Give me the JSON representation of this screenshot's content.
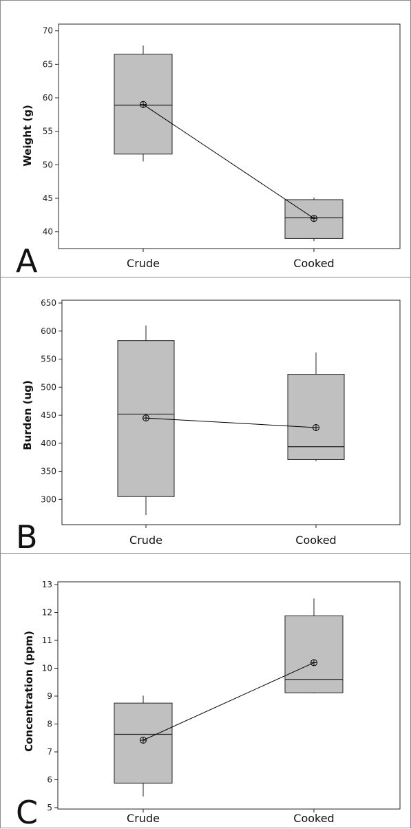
{
  "colors": {
    "box_fill": "#c0c0c0",
    "box_stroke": "#222222",
    "frame": "#222222",
    "line": "#000000"
  },
  "chart_data": [
    {
      "type": "box",
      "panel_label": "A",
      "ylabel": "Weight (g)",
      "categories": [
        "Crude",
        "Cooked"
      ],
      "ylim": [
        37.5,
        71
      ],
      "yticks": [
        40,
        45,
        50,
        55,
        60,
        65,
        70
      ],
      "boxes": [
        {
          "category": "Crude",
          "min": 50.5,
          "q1": 51.6,
          "median": 58.9,
          "q3": 66.5,
          "max": 67.8,
          "mean": 59.0
        },
        {
          "category": "Cooked",
          "min": 38.6,
          "q1": 39.0,
          "median": 42.1,
          "q3": 44.8,
          "max": 45.1,
          "mean": 42.0
        }
      ],
      "grid": false,
      "mean_connect_line": true
    },
    {
      "type": "box",
      "panel_label": "B",
      "ylabel": "Burden (ug)",
      "categories": [
        "Crude",
        "Cooked"
      ],
      "ylim": [
        255,
        655
      ],
      "yticks": [
        300,
        350,
        400,
        450,
        500,
        550,
        600,
        650
      ],
      "boxes": [
        {
          "category": "Crude",
          "min": 272,
          "q1": 305,
          "median": 452,
          "q3": 583,
          "max": 610,
          "mean": 445
        },
        {
          "category": "Cooked",
          "min": 368,
          "q1": 371,
          "median": 394,
          "q3": 523,
          "max": 562,
          "mean": 428
        }
      ],
      "grid": false,
      "mean_connect_line": true
    },
    {
      "type": "box",
      "panel_label": "C",
      "ylabel": "Concentration (ppm)",
      "categories": [
        "Crude",
        "Cooked"
      ],
      "ylim": [
        4.95,
        13.1
      ],
      "yticks": [
        5,
        6,
        7,
        8,
        9,
        10,
        11,
        12,
        13
      ],
      "boxes": [
        {
          "category": "Crude",
          "min": 5.4,
          "q1": 5.88,
          "median": 7.63,
          "q3": 8.75,
          "max": 9.02,
          "mean": 7.42
        },
        {
          "category": "Cooked",
          "min": 9.1,
          "q1": 9.12,
          "median": 9.6,
          "q3": 11.88,
          "max": 12.5,
          "mean": 10.2
        }
      ],
      "grid": false,
      "mean_connect_line": true
    }
  ]
}
